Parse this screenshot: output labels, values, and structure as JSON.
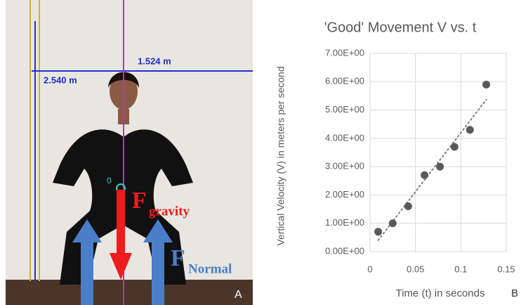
{
  "photo": {
    "horizontal_measure": "1.524 m",
    "vertical_measure": "2.540 m",
    "marker": "0",
    "gravity_symbol": "F",
    "gravity_subscript": "gravity",
    "normal_symbol": "F",
    "normal_subscript": "Normal",
    "panel": "A"
  },
  "chart_data": {
    "type": "scatter",
    "title": "'Good' Movement V vs. t",
    "x_label": "Time (t) in seconds",
    "y_label": "Vertical Velocity (V) in meters per second",
    "panel": "B",
    "x": [
      0.009,
      0.025,
      0.042,
      0.06,
      0.077,
      0.093,
      0.11,
      0.128
    ],
    "values": [
      0.7,
      1.0,
      1.6,
      2.7,
      3.0,
      3.7,
      4.3,
      5.9
    ],
    "color": "#595959",
    "trendline": "linear",
    "trendline_color": "#808080",
    "xlim": [
      0,
      0.15
    ],
    "xticks": [
      0,
      0.05,
      0.1,
      0.15
    ],
    "ylim": [
      0,
      7
    ],
    "yticks": [
      {
        "value": 0,
        "label": "0.00E+00"
      },
      {
        "value": 1,
        "label": "1.00E+00"
      },
      {
        "value": 2,
        "label": "2.00E+00"
      },
      {
        "value": 3,
        "label": "3.00E+00"
      },
      {
        "value": 4,
        "label": "4.00E+00"
      },
      {
        "value": 5,
        "label": "5.00E+00"
      },
      {
        "value": 6,
        "label": "6.00E+00"
      },
      {
        "value": 7,
        "label": "7.00E+00"
      }
    ],
    "grid": true
  }
}
